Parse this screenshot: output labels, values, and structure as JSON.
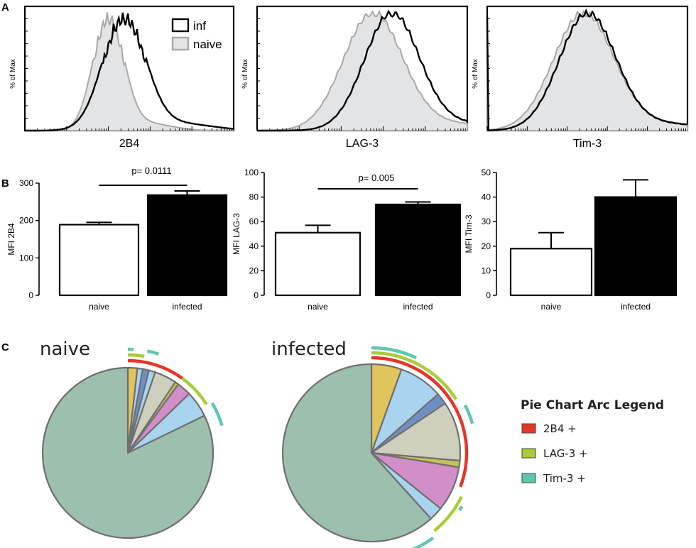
{
  "panels": {
    "a": "A",
    "b": "B",
    "c": "C"
  },
  "chart_data": [
    {
      "type": "line",
      "panel": "A",
      "ylabel": "% of Max",
      "legend": [
        "inf",
        "naive"
      ],
      "histograms": [
        {
          "xlabel": "2B4",
          "naive_peak": 0.4,
          "naive_width": 0.072,
          "inf_peak": 0.475,
          "inf_width": 0.1,
          "jagged": true
        },
        {
          "xlabel": "LAG-3",
          "naive_peak": 0.55,
          "naive_width": 0.14,
          "inf_peak": 0.64,
          "inf_width": 0.13,
          "jagged": false
        },
        {
          "xlabel": "Tim-3",
          "naive_peak": 0.48,
          "naive_width": 0.15,
          "inf_peak": 0.5,
          "inf_width": 0.14,
          "jagged": false
        }
      ]
    },
    {
      "type": "bar",
      "panel": "B",
      "categories": [
        "naive",
        "infected"
      ],
      "series": [
        {
          "ylabel": "MFI 2B4",
          "ylim": [
            0,
            300
          ],
          "yticks": [
            0,
            100,
            200,
            300
          ],
          "values": [
            189,
            268
          ],
          "errors": [
            6,
            11
          ],
          "pvalue": "p= 0.0111"
        },
        {
          "ylabel": "MFI LAG-3",
          "ylim": [
            0,
            100
          ],
          "yticks": [
            0,
            20,
            40,
            60,
            80,
            100
          ],
          "values": [
            51,
            74
          ],
          "errors": [
            6,
            2
          ],
          "pvalue": "p= 0.005"
        },
        {
          "ylabel": "MFI Tim-3",
          "ylim": [
            0,
            50
          ],
          "yticks": [
            0,
            10,
            20,
            30,
            40,
            50
          ],
          "values": [
            19,
            40
          ],
          "errors": [
            6.5,
            7
          ],
          "pvalue": ""
        }
      ]
    },
    {
      "type": "pie",
      "panel": "C",
      "legend_title": "Pie Chart Arc Legend",
      "legend": [
        {
          "label": "2B4 +",
          "color": "#e63528"
        },
        {
          "label": "LAG-3 +",
          "color": "#a9cc3a"
        },
        {
          "label": "Tim-3 +",
          "color": "#5ec7ad"
        }
      ],
      "pies": [
        {
          "title": "naive",
          "slices": [
            {
              "value": 0.018,
              "color": "#e2c45c"
            },
            {
              "value": 0.01,
              "color": "#a9d4ef"
            },
            {
              "value": 0.012,
              "color": "#6f8fc4"
            },
            {
              "value": 0.012,
              "color": "#a9d4ef"
            },
            {
              "value": 0.042,
              "color": "#cfcfbd"
            },
            {
              "value": 0.007,
              "color": "#c6c25a"
            },
            {
              "value": 0.027,
              "color": "#d28ec8"
            },
            {
              "value": 0.05,
              "color": "#a9d4ef"
            },
            {
              "value": 0.822,
              "color": "#9dbfae"
            }
          ],
          "arcs": [
            {
              "from": 0.0,
              "to": 0.1,
              "ring": 1,
              "color": "#e63528"
            },
            {
              "from": 0.1,
              "to": 0.162,
              "ring": 1,
              "color": "#a9cc3a"
            },
            {
              "from": 0.0,
              "to": 0.027,
              "ring": 2,
              "color": "#a9cc3a"
            },
            {
              "from": 0.165,
              "to": 0.205,
              "ring": 2,
              "color": "#5ec7ad"
            },
            {
              "from": 0.0,
              "to": 0.009,
              "ring": 3,
              "color": "#5ec7ad"
            },
            {
              "from": 0.03,
              "to": 0.048,
              "ring": 3,
              "color": "#5ec7ad"
            }
          ]
        },
        {
          "title": "infected",
          "slices": [
            {
              "value": 0.055,
              "color": "#e2c45c"
            },
            {
              "value": 0.08,
              "color": "#a9d4ef"
            },
            {
              "value": 0.021,
              "color": "#6f8fc4"
            },
            {
              "value": 0.108,
              "color": "#cfcfbd"
            },
            {
              "value": 0.012,
              "color": "#c6c25a"
            },
            {
              "value": 0.082,
              "color": "#d28ec8"
            },
            {
              "value": 0.025,
              "color": "#a9d4ef"
            },
            {
              "value": 0.617,
              "color": "#9dbfae"
            }
          ],
          "arcs": [
            {
              "from": 0.0,
              "to": 0.308,
              "ring": 1,
              "color": "#e63528"
            },
            {
              "from": 0.0,
              "to": 0.16,
              "ring": 2,
              "color": "#a9cc3a"
            },
            {
              "from": 0.322,
              "to": 0.392,
              "ring": 2,
              "color": "#a9cc3a"
            },
            {
              "from": 0.0,
              "to": 0.07,
              "ring": 3,
              "color": "#5ec7ad"
            },
            {
              "from": 0.175,
              "to": 0.205,
              "ring": 3,
              "color": "#5ec7ad"
            },
            {
              "from": 0.335,
              "to": 0.342,
              "ring": 3,
              "color": "#5ec7ad"
            },
            {
              "from": 0.4,
              "to": 0.44,
              "ring": 3,
              "color": "#5ec7ad"
            }
          ]
        }
      ]
    }
  ]
}
